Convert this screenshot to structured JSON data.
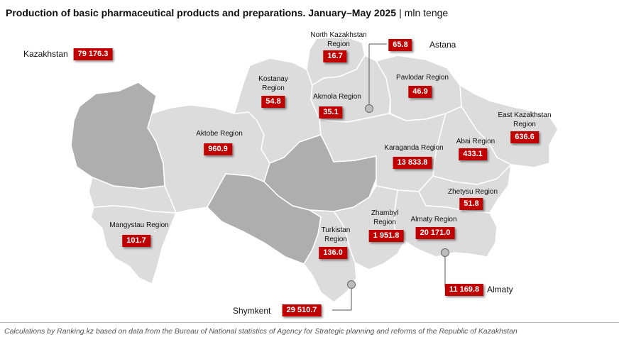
{
  "title": {
    "main": "Production of basic pharmaceutical products and preparations. January–May 2025",
    "separator": "|",
    "unit": "mln tenge"
  },
  "kazakhstan": {
    "label": "Kazakhstan",
    "value": "79 176.3"
  },
  "regions": {
    "north_kazakhstan": {
      "label1": "North Kazakhstan",
      "label2": "Region",
      "value": "16.7"
    },
    "kostanay": {
      "label1": "Kostanay",
      "label2": "Region",
      "value": "54.8"
    },
    "akmola": {
      "label": "Akmola Region",
      "value": "35.1"
    },
    "pavlodar": {
      "label": "Pavlodar Region",
      "value": "46.9"
    },
    "east_kazakhstan": {
      "label1": "East Kazakhstan",
      "label2": "Region",
      "value": "636.6"
    },
    "aktobe": {
      "label": "Aktobe Region",
      "value": "960.9"
    },
    "karaganda": {
      "label": "Karaganda Region",
      "value": "13 833.8"
    },
    "abai": {
      "label": "Abai Region",
      "value": "433.1"
    },
    "zhetysu": {
      "label": "Zhetysu Region",
      "value": "51.8"
    },
    "mangystau": {
      "label": "Mangystau Region",
      "value": "101.7"
    },
    "turkistan": {
      "label1": "Turkistan",
      "label2": "Region",
      "value": "136.0"
    },
    "zhambyl": {
      "label1": "Zhambyl",
      "label2": "Region",
      "value": "1 951.8"
    },
    "almaty_region": {
      "label": "Almaty Region",
      "value": "20 171.0"
    }
  },
  "cities": {
    "astana": {
      "label": "Astana",
      "value": "65.8"
    },
    "almaty": {
      "label": "Almaty",
      "value": "11 169.8"
    },
    "shymkent": {
      "label": "Shymkent",
      "value": "29 510.7"
    }
  },
  "colors": {
    "value_box": "#c00000",
    "region_light": "#dcdcdc",
    "region_dark": "#aeaeae"
  },
  "footer": "Calculations by Ranking.kz based on data from the Bureau of National statistics of Agency for Strategic planning and reforms of the Republic of Kazakhstan"
}
